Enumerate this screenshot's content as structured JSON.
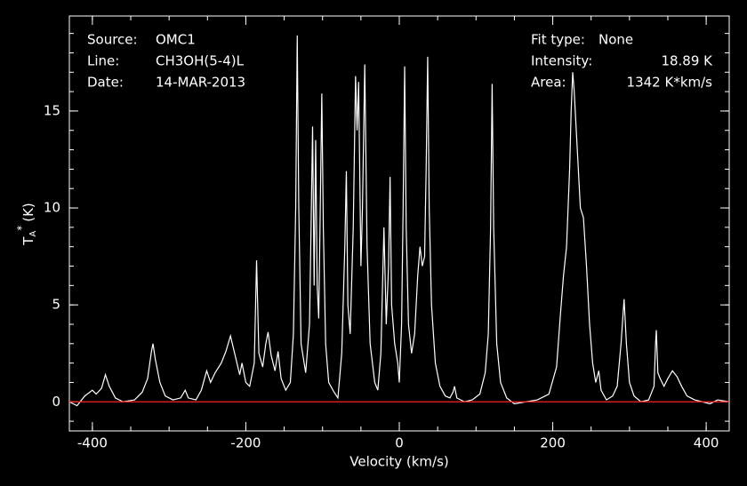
{
  "chart_data": {
    "type": "line",
    "xlabel": "Velocity (km/s)",
    "ylabel": {
      "base": "T",
      "sub": "A",
      "sup": "*",
      "unit": "(K)"
    },
    "annotations_left": [
      [
        "Source:",
        "OMC1"
      ],
      [
        "Line:",
        "CH3OH(5-4)L"
      ],
      [
        "Date:",
        "14-MAR-2013"
      ]
    ],
    "annotations_right": [
      [
        "Fit type:",
        "None"
      ],
      [
        "Intensity:",
        "18.89 K"
      ],
      [
        "Area:",
        "1342 K*km/s"
      ]
    ],
    "xlim": [
      -430,
      430
    ],
    "ylim": [
      -1.5,
      19.9
    ],
    "xticks": [
      -400,
      -200,
      0,
      200,
      400
    ],
    "yticks": [
      0,
      5,
      10,
      15
    ],
    "xminorticks": [
      -400,
      -350,
      -300,
      -250,
      -200,
      -150,
      -100,
      -50,
      0,
      50,
      100,
      150,
      200,
      250,
      300,
      350,
      400
    ],
    "yminorticks": [
      -1,
      0,
      1,
      2,
      3,
      4,
      5,
      6,
      7,
      8,
      9,
      10,
      11,
      12,
      13,
      14,
      15,
      16,
      17,
      18,
      19
    ],
    "baseline": {
      "value": 0,
      "color": "#ff2020"
    },
    "background": "#000000",
    "series": [
      {
        "color": "#ffffff",
        "x": [
          -430,
          -420,
          -410,
          -400,
          -395,
          -388,
          -383,
          -378,
          -370,
          -360,
          -345,
          -335,
          -328,
          -323,
          -321,
          -318,
          -312,
          -305,
          -295,
          -285,
          -279,
          -275,
          -265,
          -258,
          -251,
          -246,
          -240,
          -232,
          -226,
          -220,
          -214,
          -208,
          -205,
          -200,
          -195,
          -189,
          -186,
          -183,
          -178,
          -174,
          -171,
          -167,
          -162,
          -158,
          -154,
          -148,
          -142,
          -138,
          -135,
          -133,
          -131,
          -128,
          -122,
          -117,
          -115,
          -113,
          -111,
          -109,
          -107,
          -105,
          -103,
          -101,
          -99,
          -96,
          -92,
          -85,
          -80,
          -75,
          -71,
          -69,
          -67,
          -64,
          -60,
          -57,
          -55,
          -53,
          -50,
          -48,
          -45,
          -42,
          -38,
          -32,
          -28,
          -24,
          -20,
          -17,
          -14,
          -12,
          -10,
          -6,
          -2,
          0,
          3,
          5,
          7,
          9,
          12,
          16,
          20,
          24,
          27,
          30,
          33,
          35,
          37,
          39,
          42,
          47,
          53,
          60,
          66,
          70,
          72,
          75,
          85,
          95,
          105,
          112,
          116,
          119,
          121,
          123,
          127,
          132,
          140,
          150,
          165,
          180,
          195,
          205,
          210,
          214,
          218,
          222,
          224,
          226,
          228,
          232,
          236,
          240,
          244,
          248,
          252,
          256,
          260,
          263,
          270,
          278,
          284,
          289,
          293,
          296,
          300,
          306,
          315,
          325,
          332,
          334,
          335,
          337,
          340,
          345,
          350,
          356,
          362,
          368,
          375,
          385,
          395,
          405,
          415,
          430
        ],
        "values": [
          0,
          -0.2,
          0.3,
          0.6,
          0.4,
          0.7,
          1.4,
          0.8,
          0.2,
          0,
          0.1,
          0.5,
          1.2,
          2.6,
          3,
          2.2,
          1,
          0.3,
          0.1,
          0.2,
          0.6,
          0.2,
          0.1,
          0.6,
          1.6,
          1,
          1.5,
          2,
          2.6,
          3.4,
          2.4,
          1.4,
          2,
          1,
          0.8,
          2,
          7.3,
          2.5,
          1.8,
          3,
          3.6,
          2.4,
          1.6,
          2.6,
          1.2,
          0.6,
          1,
          3.5,
          10,
          18.9,
          10,
          3,
          1.5,
          4,
          9,
          14.2,
          6,
          13.5,
          6,
          4.3,
          10,
          15.9,
          9,
          3,
          1,
          0.5,
          0.2,
          2.5,
          8,
          11.9,
          5,
          3.5,
          9,
          16.8,
          14,
          16.5,
          7,
          10,
          17.4,
          8,
          3,
          1,
          0.6,
          2.5,
          9,
          4,
          7,
          11.6,
          5,
          3,
          2,
          1,
          4,
          10,
          17.3,
          9,
          4,
          2.5,
          3.5,
          6.5,
          8,
          7,
          7.5,
          12,
          17.8,
          10,
          5,
          2,
          0.8,
          0.3,
          0.2,
          0.5,
          0.8,
          0.2,
          0,
          0.1,
          0.4,
          1.5,
          3.5,
          9,
          16.4,
          9,
          3,
          1,
          0.2,
          -0.1,
          0,
          0.1,
          0.4,
          1.8,
          4.5,
          6.5,
          8,
          12,
          15,
          17,
          16,
          13,
          10,
          9.5,
          7,
          4,
          2,
          1,
          1.6,
          0.6,
          0.1,
          0.3,
          0.8,
          3,
          5.3,
          3,
          1,
          0.3,
          0,
          0.1,
          0.8,
          3,
          3.7,
          1.5,
          1.2,
          0.8,
          1.2,
          1.6,
          1.3,
          0.8,
          0.3,
          0.1,
          0,
          -0.1,
          0.1,
          0
        ]
      }
    ]
  }
}
